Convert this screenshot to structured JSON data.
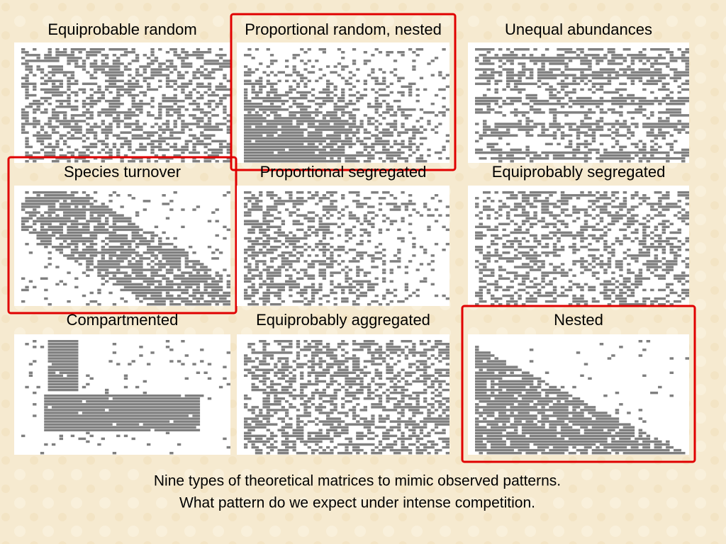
{
  "panels": [
    {
      "title": "Equiprobable random",
      "highlighted": false
    },
    {
      "title": "Proportional random, nested",
      "highlighted": true
    },
    {
      "title": "Unequal abundances",
      "highlighted": false
    },
    {
      "title": "Species turnover",
      "highlighted": true
    },
    {
      "title": "Proportional segregated",
      "highlighted": false
    },
    {
      "title": "Equiprobably segregated",
      "highlighted": false
    },
    {
      "title": "Compartmented",
      "highlighted": false
    },
    {
      "title": "Equiprobably aggregated",
      "highlighted": false
    },
    {
      "title": "Nested",
      "highlighted": true
    }
  ],
  "caption": [
    "Nine types of theoretical matrices to mimic observed patterns.",
    "What pattern do we expect under intense competition."
  ]
}
